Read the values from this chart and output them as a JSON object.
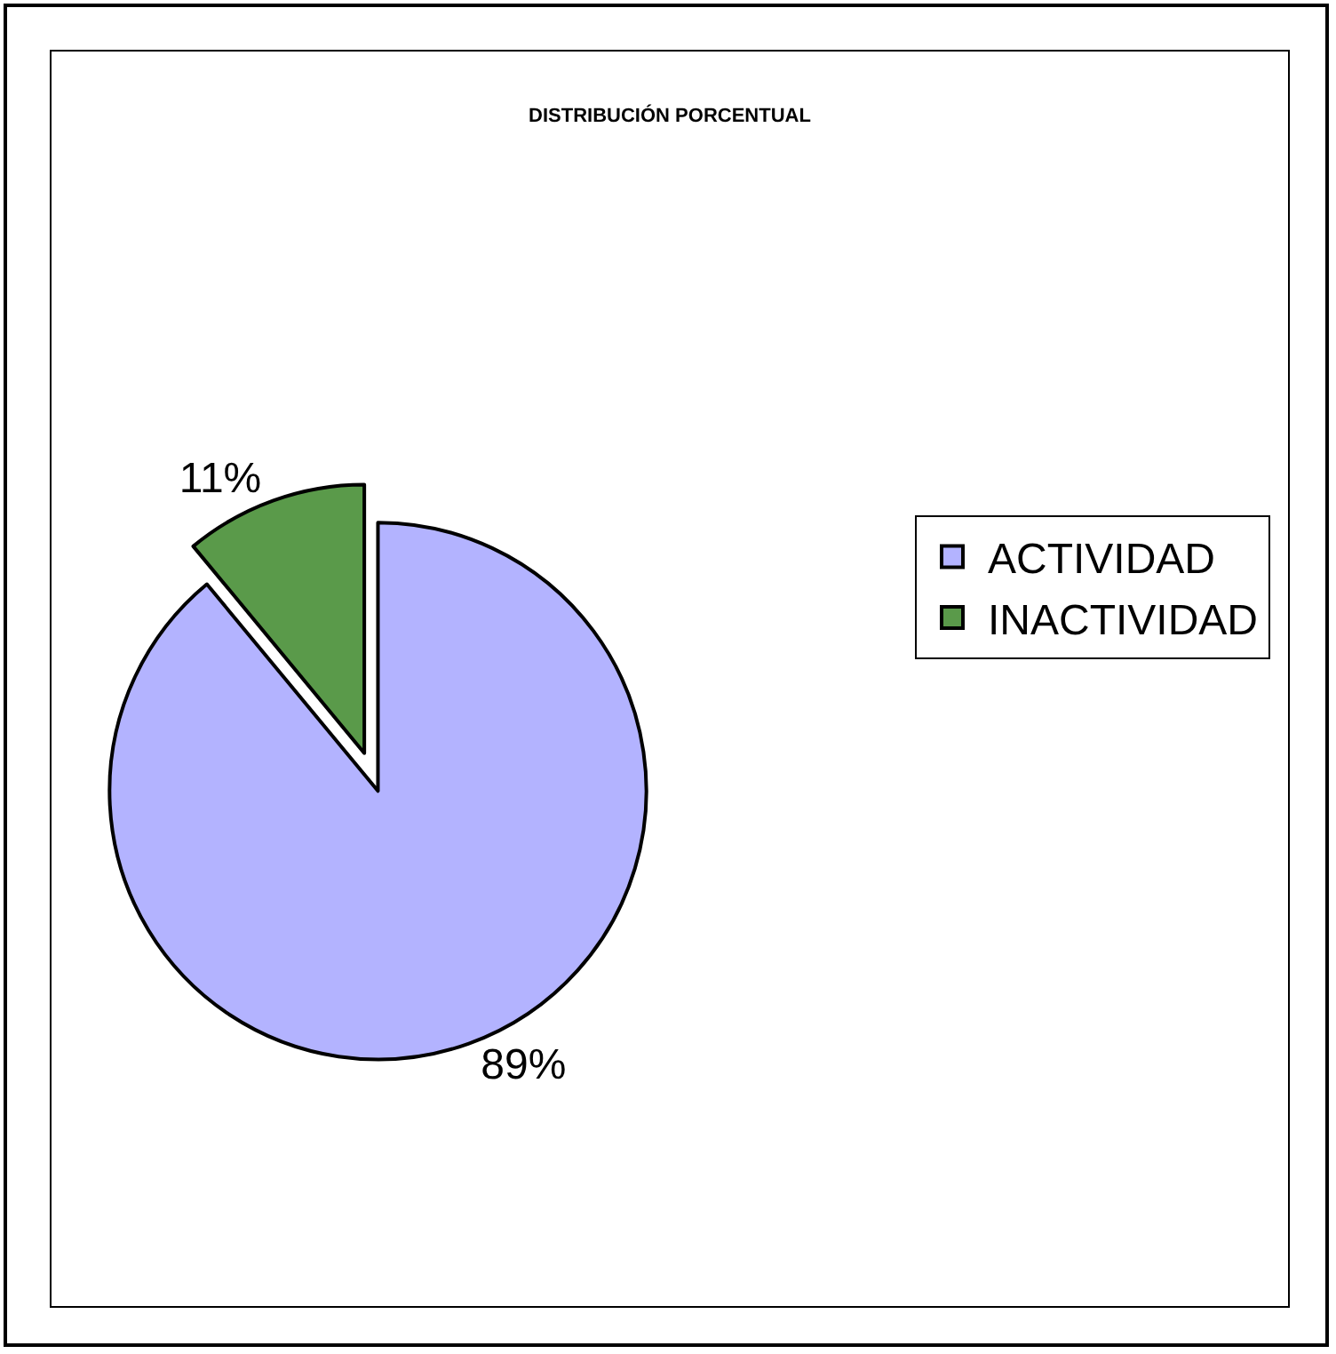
{
  "chart_data": {
    "type": "pie",
    "title": "DISTRIBUCIÓN PORCENTUAL",
    "categories": [
      "ACTIVIDAD",
      "INACTIVIDAD"
    ],
    "values": [
      89,
      11
    ],
    "value_labels": [
      "89%",
      "11%"
    ],
    "colors": [
      "#b3b3ff",
      "#5a9a4a"
    ],
    "legend": "right"
  }
}
